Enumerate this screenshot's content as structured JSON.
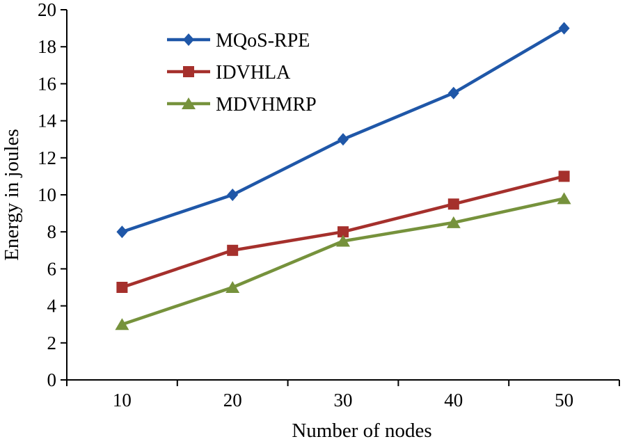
{
  "chart_data": {
    "type": "line",
    "title": "",
    "xlabel": "Number of nodes",
    "ylabel": "Energy in joules",
    "categories": [
      "10",
      "20",
      "30",
      "40",
      "50"
    ],
    "ylim": [
      0,
      20
    ],
    "ytick_step": 2,
    "grid": false,
    "legend_position": "top-left-inside",
    "axis_color": "#000000",
    "series": [
      {
        "name": "MQoS-RPE",
        "marker": "diamond",
        "color": "#1F57A8",
        "values": [
          8,
          10,
          13,
          15.5,
          19
        ]
      },
      {
        "name": "IDVHLA",
        "marker": "square",
        "color": "#A5302C",
        "values": [
          5,
          7,
          8,
          9.5,
          11
        ]
      },
      {
        "name": "MDVHMRP",
        "marker": "triangle",
        "color": "#76923C",
        "values": [
          3,
          5,
          7.5,
          8.5,
          9.8
        ]
      }
    ]
  }
}
